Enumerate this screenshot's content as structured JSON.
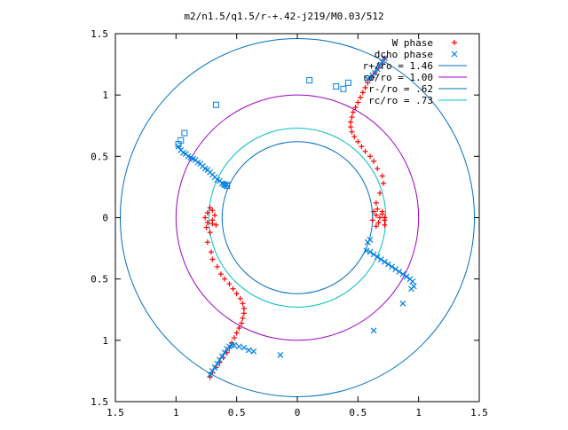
{
  "chart_data": {
    "type": "scatter",
    "title": "m2/n1.5/q1.5/r-+.42-j219/M0.03/512",
    "xlabel": "",
    "ylabel": "",
    "xlim": [
      -1.5,
      1.5
    ],
    "ylim": [
      -1.5,
      1.5
    ],
    "x_ticks": [
      -1.5,
      -1,
      -0.5,
      0,
      0.5,
      1,
      1.5
    ],
    "x_tick_labels": [
      "1.5",
      "1",
      "0.5",
      "0",
      "0.5",
      "1",
      "1.5"
    ],
    "y_ticks": [
      1.5,
      1,
      0.5,
      0,
      -0.5,
      -1,
      -1.5
    ],
    "y_tick_labels": [
      "1.5",
      "1",
      "0.5",
      "0",
      "0.5",
      "1",
      "1.5"
    ],
    "grid": false,
    "legend_position": "top-right",
    "colors": {
      "w_phase": "#ff0000",
      "dcho_phase": "#0080e0",
      "r_plus": "#0070c0",
      "ro": "#a000c0",
      "r_minus": "#0070c0",
      "rc": "#00c0c0",
      "axes": "#000000"
    },
    "circles": [
      {
        "name": "r+/ro = 1.46",
        "radius": 1.46,
        "color_key": "r_plus"
      },
      {
        "name": "ro/ro = 1.00",
        "radius": 1.0,
        "color_key": "ro"
      },
      {
        "name": "r-/ro = .62",
        "radius": 0.62,
        "color_key": "r_minus"
      },
      {
        "name": "rc/ro = .73",
        "radius": 0.73,
        "color_key": "rc"
      }
    ],
    "series": [
      {
        "name": "W phase",
        "marker": "plus",
        "color_key": "w_phase",
        "points": [
          [
            0.72,
            1.3
          ],
          [
            0.7,
            1.26
          ],
          [
            0.67,
            1.22
          ],
          [
            0.64,
            1.18
          ],
          [
            0.61,
            1.14
          ],
          [
            0.58,
            1.1
          ],
          [
            0.56,
            1.06
          ],
          [
            0.54,
            1.02
          ],
          [
            0.52,
            0.98
          ],
          [
            0.5,
            0.94
          ],
          [
            0.48,
            0.9
          ],
          [
            0.46,
            0.86
          ],
          [
            0.45,
            0.82
          ],
          [
            0.44,
            0.78
          ],
          [
            0.44,
            0.74
          ],
          [
            0.45,
            0.7
          ],
          [
            0.47,
            0.66
          ],
          [
            0.5,
            0.62
          ],
          [
            0.53,
            0.58
          ],
          [
            0.56,
            0.54
          ],
          [
            0.6,
            0.5
          ],
          [
            0.63,
            0.46
          ],
          [
            0.66,
            0.4
          ],
          [
            0.7,
            0.34
          ],
          [
            0.71,
            0.28
          ],
          [
            0.68,
            0.2
          ],
          [
            0.65,
            0.12
          ],
          [
            0.63,
            0.05
          ],
          [
            0.62,
            -0.02
          ],
          [
            0.65,
            -0.07
          ],
          [
            0.7,
            0.05
          ],
          [
            0.72,
            -0.02
          ],
          [
            0.72,
            0.0
          ],
          [
            0.72,
            -0.06
          ],
          [
            0.68,
            0.0
          ],
          [
            0.65,
            0.02
          ],
          [
            0.67,
            -0.04
          ],
          [
            0.7,
            0.03
          ],
          [
            0.66,
            0.07
          ],
          [
            -0.72,
            -1.3
          ],
          [
            -0.7,
            -1.26
          ],
          [
            -0.67,
            -1.22
          ],
          [
            -0.64,
            -1.18
          ],
          [
            -0.61,
            -1.14
          ],
          [
            -0.58,
            -1.1
          ],
          [
            -0.56,
            -1.06
          ],
          [
            -0.54,
            -1.02
          ],
          [
            -0.52,
            -0.98
          ],
          [
            -0.5,
            -0.94
          ],
          [
            -0.48,
            -0.9
          ],
          [
            -0.46,
            -0.86
          ],
          [
            -0.45,
            -0.82
          ],
          [
            -0.44,
            -0.78
          ],
          [
            -0.44,
            -0.74
          ],
          [
            -0.45,
            -0.7
          ],
          [
            -0.47,
            -0.66
          ],
          [
            -0.5,
            -0.62
          ],
          [
            -0.53,
            -0.58
          ],
          [
            -0.56,
            -0.54
          ],
          [
            -0.6,
            -0.5
          ],
          [
            -0.63,
            -0.46
          ],
          [
            -0.66,
            -0.4
          ],
          [
            -0.7,
            -0.34
          ],
          [
            -0.71,
            -0.28
          ],
          [
            -0.74,
            -0.2
          ],
          [
            -0.72,
            -0.12
          ],
          [
            -0.7,
            -0.05
          ],
          [
            -0.68,
            0.02
          ],
          [
            -0.7,
            0.06
          ],
          [
            -0.74,
            0.04
          ],
          [
            -0.76,
            0.0
          ],
          [
            -0.74,
            -0.04
          ],
          [
            -0.7,
            -0.02
          ],
          [
            -0.67,
            -0.06
          ],
          [
            -0.72,
            0.08
          ],
          [
            -0.75,
            -0.08
          ]
        ]
      },
      {
        "name": "dcho phase",
        "marker": "cross",
        "color_key": "dcho_phase",
        "points": [
          [
            -0.98,
            0.58
          ],
          [
            -0.96,
            0.55
          ],
          [
            -0.94,
            0.53
          ],
          [
            -0.92,
            0.52
          ],
          [
            -0.9,
            0.5
          ],
          [
            -0.88,
            0.49
          ],
          [
            -0.86,
            0.48
          ],
          [
            -0.84,
            0.47
          ],
          [
            -0.82,
            0.45
          ],
          [
            -0.8,
            0.44
          ],
          [
            -0.78,
            0.42
          ],
          [
            -0.76,
            0.4
          ],
          [
            -0.74,
            0.39
          ],
          [
            -0.72,
            0.37
          ],
          [
            -0.7,
            0.35
          ],
          [
            -0.68,
            0.33
          ],
          [
            -0.66,
            0.31
          ],
          [
            -0.64,
            0.3
          ],
          [
            -0.62,
            0.28
          ],
          [
            -0.6,
            0.27
          ],
          [
            -0.58,
            0.27
          ],
          [
            -0.72,
            -1.28
          ],
          [
            -0.7,
            -1.25
          ],
          [
            -0.68,
            -1.22
          ],
          [
            -0.66,
            -1.19
          ],
          [
            -0.64,
            -1.16
          ],
          [
            -0.62,
            -1.13
          ],
          [
            -0.6,
            -1.1
          ],
          [
            -0.58,
            -1.07
          ],
          [
            -0.56,
            -1.05
          ],
          [
            -0.54,
            -1.04
          ],
          [
            -0.52,
            -1.04
          ],
          [
            -0.48,
            -1.05
          ],
          [
            -0.44,
            -1.06
          ],
          [
            -0.4,
            -1.08
          ],
          [
            -0.36,
            -1.09
          ],
          [
            0.57,
            -0.27
          ],
          [
            0.6,
            -0.28
          ],
          [
            0.63,
            -0.3
          ],
          [
            0.66,
            -0.32
          ],
          [
            0.69,
            -0.34
          ],
          [
            0.72,
            -0.36
          ],
          [
            0.75,
            -0.38
          ],
          [
            0.78,
            -0.4
          ],
          [
            0.81,
            -0.42
          ],
          [
            0.84,
            -0.44
          ],
          [
            0.87,
            -0.46
          ],
          [
            0.9,
            -0.48
          ],
          [
            0.93,
            -0.5
          ],
          [
            0.95,
            -0.52
          ],
          [
            0.96,
            -0.56
          ],
          [
            0.94,
            -0.58
          ],
          [
            0.72,
            1.3
          ],
          [
            0.7,
            1.27
          ],
          [
            0.68,
            1.24
          ],
          [
            0.66,
            1.21
          ],
          [
            0.64,
            1.18
          ],
          [
            0.62,
            1.16
          ],
          [
            0.6,
            1.14
          ],
          [
            0.58,
            1.13
          ],
          [
            0.87,
            -0.7
          ],
          [
            0.63,
            -0.92
          ],
          [
            -0.14,
            -1.12
          ],
          [
            0.58,
            -0.2
          ],
          [
            0.6,
            -0.18
          ]
        ]
      },
      {
        "name": "",
        "marker": "square",
        "color_key": "dcho_phase",
        "points": [
          [
            -0.93,
            0.69
          ],
          [
            -0.96,
            0.63
          ],
          [
            -0.98,
            0.6
          ],
          [
            -0.67,
            0.92
          ],
          [
            0.1,
            1.12
          ],
          [
            0.32,
            1.07
          ],
          [
            0.38,
            1.05
          ],
          [
            0.42,
            1.1
          ],
          [
            -0.6,
            0.27
          ],
          [
            -0.58,
            0.26
          ]
        ]
      }
    ]
  }
}
